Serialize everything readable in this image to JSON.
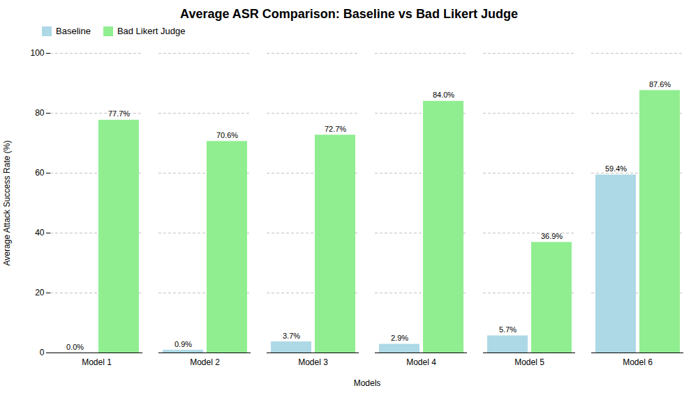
{
  "chart_data": {
    "type": "bar",
    "title": "Average ASR Comparison: Baseline vs Bad Likert Judge",
    "xlabel": "Models",
    "ylabel": "Average Attack Success Rate (%)",
    "categories": [
      "Model 1",
      "Model 2",
      "Model 3",
      "Model 4",
      "Model 5",
      "Model 6"
    ],
    "series": [
      {
        "name": "Baseline",
        "color": "#ADD8E6",
        "values": [
          0.0,
          0.9,
          3.7,
          2.9,
          5.7,
          59.4
        ],
        "value_labels": [
          "0.0%",
          "0.9%",
          "3.7%",
          "2.9%",
          "5.7%",
          "59.4%"
        ]
      },
      {
        "name": "Bad Likert Judge",
        "color": "#90EE90",
        "values": [
          77.7,
          70.6,
          72.7,
          84.0,
          36.9,
          87.6
        ],
        "value_labels": [
          "77.7%",
          "70.6%",
          "72.7%",
          "84.0%",
          "36.9%",
          "87.6%"
        ]
      }
    ],
    "ylim": [
      0,
      100
    ],
    "yticks": [
      0,
      20,
      40,
      60,
      80,
      100
    ],
    "grid": true,
    "legend": "upper left",
    "data_labels": true
  }
}
